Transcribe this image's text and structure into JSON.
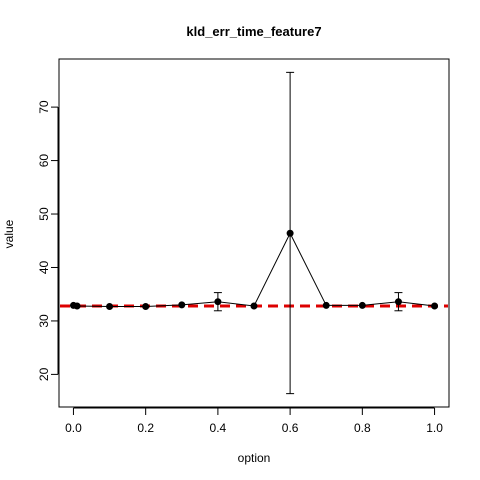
{
  "chart_data": {
    "type": "line",
    "title": "kld_err_time_feature7",
    "xlabel": "option",
    "ylabel": "value",
    "x": [
      0.0,
      0.01,
      0.1,
      0.2,
      0.3,
      0.4,
      0.5,
      0.6,
      0.7,
      0.8,
      0.9,
      1.0
    ],
    "series": [
      {
        "values": [
          32.9,
          32.8,
          32.7,
          32.7,
          33.0,
          33.6,
          32.8,
          46.4,
          32.9,
          32.9,
          33.6,
          32.8
        ],
        "error_low": [
          32.9,
          32.8,
          32.7,
          32.7,
          33.0,
          31.9,
          32.8,
          16.4,
          32.9,
          32.9,
          31.9,
          32.8
        ],
        "error_high": [
          32.9,
          32.8,
          32.7,
          32.7,
          33.0,
          35.3,
          32.8,
          76.5,
          32.9,
          32.9,
          35.3,
          32.8
        ],
        "color": "#000000"
      }
    ],
    "reference_line": {
      "value": 32.8,
      "color": "#dd0000",
      "style": "dashed"
    },
    "xticks": [
      0.0,
      0.2,
      0.4,
      0.6,
      0.8,
      1.0
    ],
    "xtick_labels": [
      "0.0",
      "0.2",
      "0.4",
      "0.6",
      "0.8",
      "1.0"
    ],
    "yticks": [
      20,
      30,
      40,
      50,
      60,
      70
    ],
    "ytick_labels": [
      "20",
      "30",
      "40",
      "50",
      "60",
      "70"
    ],
    "xlim": [
      -0.04,
      1.04
    ],
    "ylim": [
      13.9,
      79.0
    ],
    "grid": false,
    "legend": "none"
  }
}
